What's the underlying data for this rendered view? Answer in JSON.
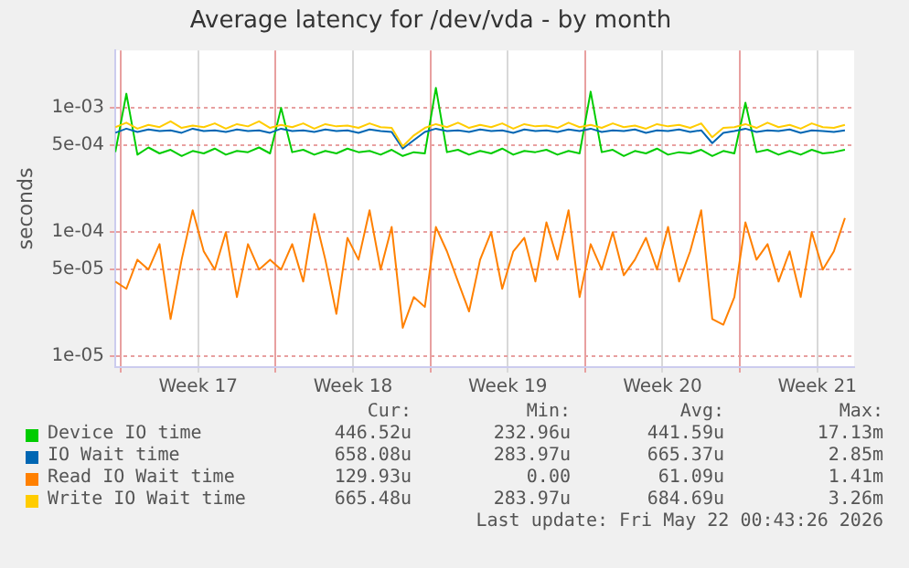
{
  "chart_data": {
    "type": "line",
    "title": "Average latency for /dev/vda - by month",
    "ylabel": "seconds",
    "log": "y",
    "grid": true,
    "legend": "bottom",
    "marker": "none",
    "line_style": "solid",
    "ylim": [
      8.2e-06,
      0.0029
    ],
    "yticks": [
      {
        "value": 1e-05,
        "label": "1e-05"
      },
      {
        "value": 5e-05,
        "label": "5e-05"
      },
      {
        "value": 0.0001,
        "label": "1e-04"
      },
      {
        "value": 0.0005,
        "label": "5e-04"
      },
      {
        "value": 0.001,
        "label": "1e-03"
      }
    ],
    "xlim": [
      "2026-04-18T18:00",
      "2026-05-22T04:00"
    ],
    "xticks": [
      {
        "value": "2026-04-19T00:00",
        "label": null
      },
      {
        "value": "2026-04-22T12:00",
        "label": "Week 17"
      },
      {
        "value": "2026-04-26T00:00",
        "label": null
      },
      {
        "value": "2026-04-29T12:00",
        "label": "Week 18"
      },
      {
        "value": "2026-05-03T00:00",
        "label": null
      },
      {
        "value": "2026-05-06T12:00",
        "label": "Week 19"
      },
      {
        "value": "2026-05-10T00:00",
        "label": null
      },
      {
        "value": "2026-05-13T12:00",
        "label": "Week 20"
      },
      {
        "value": "2026-05-17T00:00",
        "label": null
      },
      {
        "value": "2026-05-20T12:00",
        "label": "Week 21"
      }
    ],
    "x": [
      "2026-04-18T18:00",
      "2026-04-19T06:00",
      "2026-04-19T18:00",
      "2026-04-20T06:00",
      "2026-04-20T18:00",
      "2026-04-21T06:00",
      "2026-04-21T18:00",
      "2026-04-22T06:00",
      "2026-04-22T18:00",
      "2026-04-23T06:00",
      "2026-04-23T18:00",
      "2026-04-24T06:00",
      "2026-04-24T18:00",
      "2026-04-25T06:00",
      "2026-04-25T18:00",
      "2026-04-26T06:00",
      "2026-04-26T18:00",
      "2026-04-27T06:00",
      "2026-04-27T18:00",
      "2026-04-28T06:00",
      "2026-04-28T18:00",
      "2026-04-29T06:00",
      "2026-04-29T18:00",
      "2026-04-30T06:00",
      "2026-04-30T18:00",
      "2026-05-01T06:00",
      "2026-05-01T18:00",
      "2026-05-02T06:00",
      "2026-05-02T18:00",
      "2026-05-03T06:00",
      "2026-05-03T18:00",
      "2026-05-04T06:00",
      "2026-05-04T18:00",
      "2026-05-05T06:00",
      "2026-05-05T18:00",
      "2026-05-06T06:00",
      "2026-05-06T18:00",
      "2026-05-07T06:00",
      "2026-05-07T18:00",
      "2026-05-08T06:00",
      "2026-05-08T18:00",
      "2026-05-09T06:00",
      "2026-05-09T18:00",
      "2026-05-10T06:00",
      "2026-05-10T18:00",
      "2026-05-11T06:00",
      "2026-05-11T18:00",
      "2026-05-12T06:00",
      "2026-05-12T18:00",
      "2026-05-13T06:00",
      "2026-05-13T18:00",
      "2026-05-14T06:00",
      "2026-05-14T18:00",
      "2026-05-15T06:00",
      "2026-05-15T18:00",
      "2026-05-16T06:00",
      "2026-05-16T18:00",
      "2026-05-17T06:00",
      "2026-05-17T18:00",
      "2026-05-18T06:00",
      "2026-05-18T18:00",
      "2026-05-19T06:00",
      "2026-05-19T18:00",
      "2026-05-20T06:00",
      "2026-05-20T18:00",
      "2026-05-21T06:00",
      "2026-05-21T18:00"
    ],
    "series": [
      {
        "name": "Device IO time",
        "color": "#00cc00",
        "values": [
          0.00044,
          0.0013,
          0.00042,
          0.00048,
          0.00043,
          0.00046,
          0.00041,
          0.00045,
          0.00043,
          0.00047,
          0.00042,
          0.00045,
          0.00044,
          0.00048,
          0.00043,
          0.001,
          0.00044,
          0.00046,
          0.00042,
          0.00045,
          0.00043,
          0.00047,
          0.00044,
          0.00045,
          0.00042,
          0.00046,
          0.00041,
          0.00044,
          0.00043,
          0.00145,
          0.00044,
          0.00046,
          0.00042,
          0.00045,
          0.00043,
          0.00047,
          0.00042,
          0.00045,
          0.00044,
          0.00046,
          0.00042,
          0.00045,
          0.00043,
          0.00135,
          0.00044,
          0.00046,
          0.00041,
          0.00045,
          0.00043,
          0.00047,
          0.00042,
          0.00044,
          0.00043,
          0.00046,
          0.00041,
          0.00045,
          0.00043,
          0.0011,
          0.00044,
          0.00046,
          0.00042,
          0.00045,
          0.00042,
          0.00046,
          0.00043,
          0.00044,
          0.00046
        ]
      },
      {
        "name": "IO Wait time",
        "color": "#0066b3",
        "values": [
          0.00063,
          0.00068,
          0.00064,
          0.00067,
          0.00065,
          0.00066,
          0.00063,
          0.00068,
          0.00065,
          0.00066,
          0.00064,
          0.00067,
          0.00065,
          0.00066,
          0.00063,
          0.00068,
          0.00065,
          0.00066,
          0.00064,
          0.00067,
          0.00065,
          0.00066,
          0.00063,
          0.00067,
          0.00065,
          0.00064,
          0.00047,
          0.00055,
          0.00064,
          0.00068,
          0.00065,
          0.00066,
          0.00064,
          0.00067,
          0.00065,
          0.00066,
          0.00063,
          0.00067,
          0.00065,
          0.00066,
          0.00064,
          0.00067,
          0.00065,
          0.00068,
          0.00064,
          0.00066,
          0.00065,
          0.00067,
          0.00063,
          0.00066,
          0.00065,
          0.00067,
          0.00064,
          0.00066,
          0.00052,
          0.00063,
          0.00065,
          0.00068,
          0.00064,
          0.00066,
          0.00065,
          0.00067,
          0.00063,
          0.00066,
          0.00065,
          0.00064,
          0.00066
        ]
      },
      {
        "name": "Read IO Wait time",
        "color": "#ff8000",
        "values": [
          4e-05,
          3.5e-05,
          6e-05,
          5e-05,
          8e-05,
          2e-05,
          6e-05,
          0.00015,
          7e-05,
          5e-05,
          0.0001,
          3e-05,
          8e-05,
          5e-05,
          6e-05,
          5e-05,
          8e-05,
          4e-05,
          0.00014,
          6e-05,
          2.2e-05,
          9e-05,
          6e-05,
          0.00015,
          5e-05,
          0.00011,
          1.7e-05,
          3e-05,
          2.5e-05,
          0.00011,
          7e-05,
          4e-05,
          2.3e-05,
          6e-05,
          0.0001,
          3.5e-05,
          7e-05,
          9e-05,
          4e-05,
          0.00012,
          6e-05,
          0.00015,
          3e-05,
          8e-05,
          5e-05,
          0.0001,
          4.5e-05,
          6e-05,
          9e-05,
          5e-05,
          0.00011,
          4e-05,
          7e-05,
          0.00015,
          2e-05,
          1.8e-05,
          3e-05,
          0.00012,
          6e-05,
          8e-05,
          4e-05,
          7e-05,
          3e-05,
          0.0001,
          5e-05,
          7e-05,
          0.00013
        ]
      },
      {
        "name": "Write IO Wait time",
        "color": "#ffcc00",
        "values": [
          0.0007,
          0.00076,
          0.00068,
          0.00073,
          0.0007,
          0.00078,
          0.00069,
          0.00072,
          0.0007,
          0.00075,
          0.00068,
          0.00074,
          0.00071,
          0.00078,
          0.00069,
          0.00073,
          0.0007,
          0.00075,
          0.00068,
          0.00074,
          0.00071,
          0.00072,
          0.00069,
          0.00075,
          0.0007,
          0.00069,
          0.00049,
          0.0006,
          0.00069,
          0.00074,
          0.0007,
          0.00076,
          0.00069,
          0.00073,
          0.0007,
          0.00075,
          0.00068,
          0.00074,
          0.00071,
          0.00072,
          0.00069,
          0.00076,
          0.0007,
          0.00073,
          0.00069,
          0.00075,
          0.0007,
          0.00072,
          0.00068,
          0.00074,
          0.00071,
          0.00073,
          0.00069,
          0.00075,
          0.00058,
          0.00069,
          0.0007,
          0.00074,
          0.00069,
          0.00076,
          0.0007,
          0.00073,
          0.00068,
          0.00075,
          0.0007,
          0.00069,
          0.00073
        ]
      }
    ],
    "annotations": [
      "Cur:",
      "Min:",
      "Avg:",
      "Max:",
      "446.52u",
      "232.96u",
      "441.59u",
      "17.13m",
      "658.08u",
      "283.97u",
      "665.37u",
      "2.85m",
      "129.93u",
      "0.00",
      "61.09u",
      "1.41m",
      "665.48u",
      "283.97u",
      "684.69u",
      "3.26m",
      "Last update: Fri May 22 00:43:26 2026"
    ]
  }
}
